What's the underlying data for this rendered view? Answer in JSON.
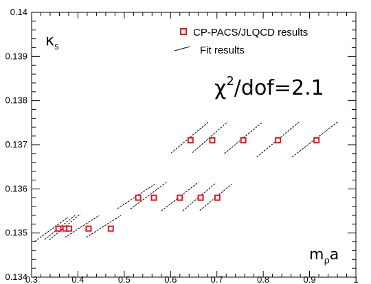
{
  "chart_data": {
    "type": "scatter",
    "xlim": [
      0.3,
      1.0
    ],
    "ylim": [
      0.134,
      0.14
    ],
    "x_ticks": [
      "0.3",
      "0.4",
      "0.5",
      "0.6",
      "0.7",
      "0.8",
      "0.9",
      "1"
    ],
    "y_ticks": [
      "0.134",
      "0.135",
      "0.136",
      "0.137",
      "0.138",
      "0.139",
      "0.14"
    ],
    "y_label": {
      "main": "κ",
      "sub": "s"
    },
    "x_label": {
      "main": "m",
      "sub": "ρ",
      "tail": "a"
    },
    "annotation": {
      "chi": "χ",
      "sup": "2",
      "rest": "/dof=2.1"
    },
    "legend": [
      {
        "label": "CP-PACS/JLQCD results",
        "marker": "open-square",
        "color": "#e8141c"
      },
      {
        "label": "Fit results",
        "marker": "line",
        "color": "#000000"
      }
    ],
    "series": [
      {
        "name": "CP-PACS/JLQCD results",
        "color": "#e8141c",
        "points": [
          [
            0.358,
            0.1351
          ],
          [
            0.373,
            0.1351
          ],
          [
            0.381,
            0.1351
          ],
          [
            0.423,
            0.1351
          ],
          [
            0.471,
            0.1351
          ],
          [
            0.53,
            0.1358
          ],
          [
            0.564,
            0.1358
          ],
          [
            0.62,
            0.1358
          ],
          [
            0.665,
            0.1358
          ],
          [
            0.701,
            0.1358
          ],
          [
            0.643,
            0.1371
          ],
          [
            0.69,
            0.1371
          ],
          [
            0.757,
            0.1371
          ],
          [
            0.832,
            0.1371
          ],
          [
            0.915,
            0.1371
          ]
        ]
      },
      {
        "name": "Fit results",
        "color": "#000000",
        "segments": [
          [
            [
              0.307,
              0.13481
            ],
            [
              0.379,
              0.13536
            ]
          ],
          [
            [
              0.328,
              0.13485
            ],
            [
              0.394,
              0.1354
            ]
          ],
          [
            [
              0.338,
              0.13484
            ],
            [
              0.405,
              0.13543
            ]
          ],
          [
            [
              0.372,
              0.1349
            ],
            [
              0.446,
              0.1354
            ]
          ],
          [
            [
              0.418,
              0.1349
            ],
            [
              0.493,
              0.1354
            ]
          ],
          [
            [
              0.485,
              0.13555
            ],
            [
              0.568,
              0.13612
            ]
          ],
          [
            [
              0.513,
              0.13554
            ],
            [
              0.591,
              0.13615
            ]
          ],
          [
            [
              0.58,
              0.1355
            ],
            [
              0.66,
              0.13615
            ]
          ],
          [
            [
              0.626,
              0.1355
            ],
            [
              0.696,
              0.13612
            ]
          ],
          [
            [
              0.663,
              0.13551
            ],
            [
              0.732,
              0.13611
            ]
          ],
          [
            [
              0.601,
              0.13681
            ],
            [
              0.681,
              0.13751
            ]
          ],
          [
            [
              0.647,
              0.13682
            ],
            [
              0.723,
              0.13752
            ]
          ],
          [
            [
              0.716,
              0.1368
            ],
            [
              0.798,
              0.13751
            ]
          ],
          [
            [
              0.786,
              0.13672
            ],
            [
              0.878,
              0.13752
            ]
          ],
          [
            [
              0.862,
              0.13672
            ],
            [
              0.961,
              0.13752
            ]
          ]
        ]
      }
    ]
  }
}
